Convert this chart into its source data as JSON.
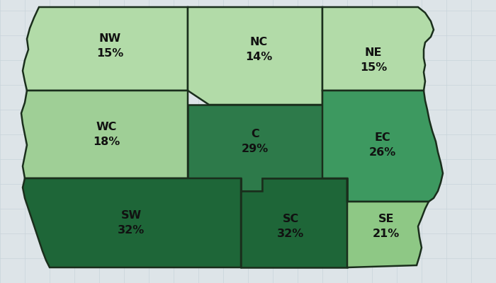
{
  "districts": {
    "NW": {
      "label": "NW\n15%"
    },
    "NC": {
      "label": "NC\n14%"
    },
    "NE": {
      "label": "NE\n15%"
    },
    "WC": {
      "label": "WC\n18%"
    },
    "C": {
      "label": "C\n29%"
    },
    "EC": {
      "label": "EC\n26%"
    },
    "SW": {
      "label": "SW\n32%"
    },
    "SC": {
      "label": "SC\n32%"
    },
    "SE": {
      "label": "SE\n21%"
    }
  },
  "colors": {
    "NW": "#b2dba8",
    "NC": "#b2dba8",
    "NE": "#b2dba8",
    "WC": "#9fcf96",
    "C": "#2d7a4a",
    "EC": "#3d9960",
    "SW": "#1e6638",
    "SC": "#1e6638",
    "SE": "#8ec885"
  },
  "bg_color": "#dde4e8",
  "county_grid_color": "#c8d4da",
  "border_color": "#1a2e1c",
  "text_color": "#111111",
  "font_size": 11.5,
  "fig_width": 7.0,
  "fig_height": 4.0
}
